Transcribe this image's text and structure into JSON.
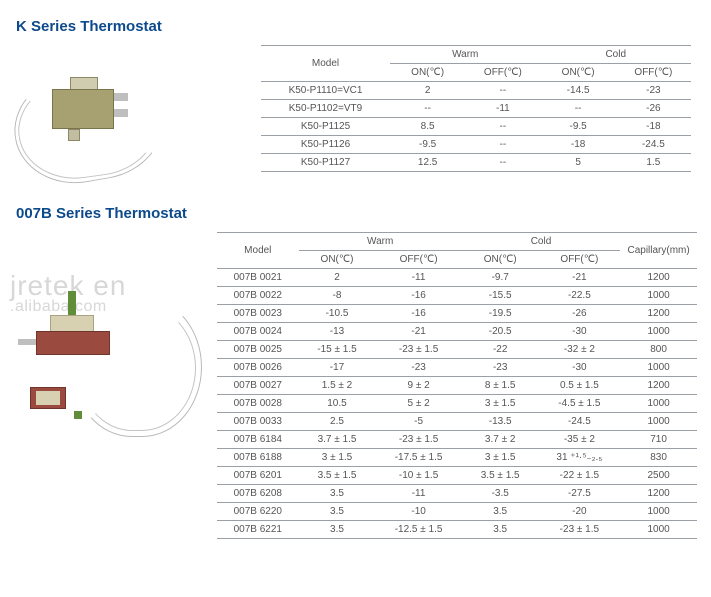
{
  "colors": {
    "title": "#0d4a8c",
    "text": "#555555",
    "rule": "#9aa0a6",
    "bg": "#ffffff",
    "watermark": "rgba(140,140,140,0.35)"
  },
  "watermark": {
    "line1": "jretek en",
    "line2": ".alibaba.com"
  },
  "k_series": {
    "title": "K Series Thermostat",
    "headers": {
      "model": "Model",
      "warm": "Warm",
      "cold": "Cold",
      "on": "ON(℃)",
      "off": "OFF(℃)"
    },
    "rows": [
      {
        "model": "K50-P1110=VC1",
        "warm_on": "2",
        "warm_off": "--",
        "cold_on": "-14.5",
        "cold_off": "-23"
      },
      {
        "model": "K50-P1102=VT9",
        "warm_on": "--",
        "warm_off": "-11",
        "cold_on": "--",
        "cold_off": "-26"
      },
      {
        "model": "K50-P1125",
        "warm_on": "8.5",
        "warm_off": "--",
        "cold_on": "-9.5",
        "cold_off": "-18"
      },
      {
        "model": "K50-P1126",
        "warm_on": "-9.5",
        "warm_off": "--",
        "cold_on": "-18",
        "cold_off": "-24.5"
      },
      {
        "model": "K50-P1127",
        "warm_on": "12.5",
        "warm_off": "--",
        "cold_on": "5",
        "cold_off": "1.5"
      }
    ]
  },
  "b_series": {
    "title": "007B Series Thermostat",
    "headers": {
      "model": "Model",
      "warm": "Warm",
      "cold": "Cold",
      "capillary": "Capillary(mm)",
      "on": "ON(℃)",
      "off": "OFF(℃)"
    },
    "rows": [
      {
        "model": "007B 0021",
        "warm_on": "2",
        "warm_off": "-11",
        "cold_on": "-9.7",
        "cold_off": "-21",
        "cap": "1200"
      },
      {
        "model": "007B 0022",
        "warm_on": "-8",
        "warm_off": "-16",
        "cold_on": "-15.5",
        "cold_off": "-22.5",
        "cap": "1000"
      },
      {
        "model": "007B 0023",
        "warm_on": "-10.5",
        "warm_off": "-16",
        "cold_on": "-19.5",
        "cold_off": "-26",
        "cap": "1200"
      },
      {
        "model": "007B 0024",
        "warm_on": "-13",
        "warm_off": "-21",
        "cold_on": "-20.5",
        "cold_off": "-30",
        "cap": "1000"
      },
      {
        "model": "007B 0025",
        "warm_on": "-15 ± 1.5",
        "warm_off": "-23 ± 1.5",
        "cold_on": "-22",
        "cold_off": "-32 ± 2",
        "cap": "800"
      },
      {
        "model": "007B 0026",
        "warm_on": "-17",
        "warm_off": "-23",
        "cold_on": "-23",
        "cold_off": "-30",
        "cap": "1000"
      },
      {
        "model": "007B 0027",
        "warm_on": "1.5 ± 2",
        "warm_off": "9 ± 2",
        "cold_on": "8 ± 1.5",
        "cold_off": "0.5 ± 1.5",
        "cap": "1200"
      },
      {
        "model": "007B 0028",
        "warm_on": "10.5",
        "warm_off": "5 ± 2",
        "cold_on": "3 ± 1.5",
        "cold_off": "-4.5 ± 1.5",
        "cap": "1000"
      },
      {
        "model": "007B 0033",
        "warm_on": "2.5",
        "warm_off": "-5",
        "cold_on": "-13.5",
        "cold_off": "-24.5",
        "cap": "1000"
      },
      {
        "model": "007B 6184",
        "warm_on": "3.7 ± 1.5",
        "warm_off": "-23 ± 1.5",
        "cold_on": "3.7 ± 2",
        "cold_off": "-35 ± 2",
        "cap": "710"
      },
      {
        "model": "007B 6188",
        "warm_on": "3 ± 1.5",
        "warm_off": "-17.5 ± 1.5",
        "cold_on": "3 ± 1.5",
        "cold_off": "31 ⁺¹·⁵₋₂.₅",
        "cap": "830"
      },
      {
        "model": "007B 6201",
        "warm_on": "3.5 ± 1.5",
        "warm_off": "-10 ± 1.5",
        "cold_on": "3.5 ± 1.5",
        "cold_off": "-22 ± 1.5",
        "cap": "2500"
      },
      {
        "model": "007B 6208",
        "warm_on": "3.5",
        "warm_off": "-11",
        "cold_on": "-3.5",
        "cold_off": "-27.5",
        "cap": "1200"
      },
      {
        "model": "007B 6220",
        "warm_on": "3.5",
        "warm_off": "-10",
        "cold_on": "3.5",
        "cold_off": "-20",
        "cap": "1000"
      },
      {
        "model": "007B 6221",
        "warm_on": "3.5",
        "warm_off": "-12.5 ± 1.5",
        "cold_on": "3.5",
        "cold_off": "-23 ± 1.5",
        "cap": "1000"
      }
    ]
  }
}
